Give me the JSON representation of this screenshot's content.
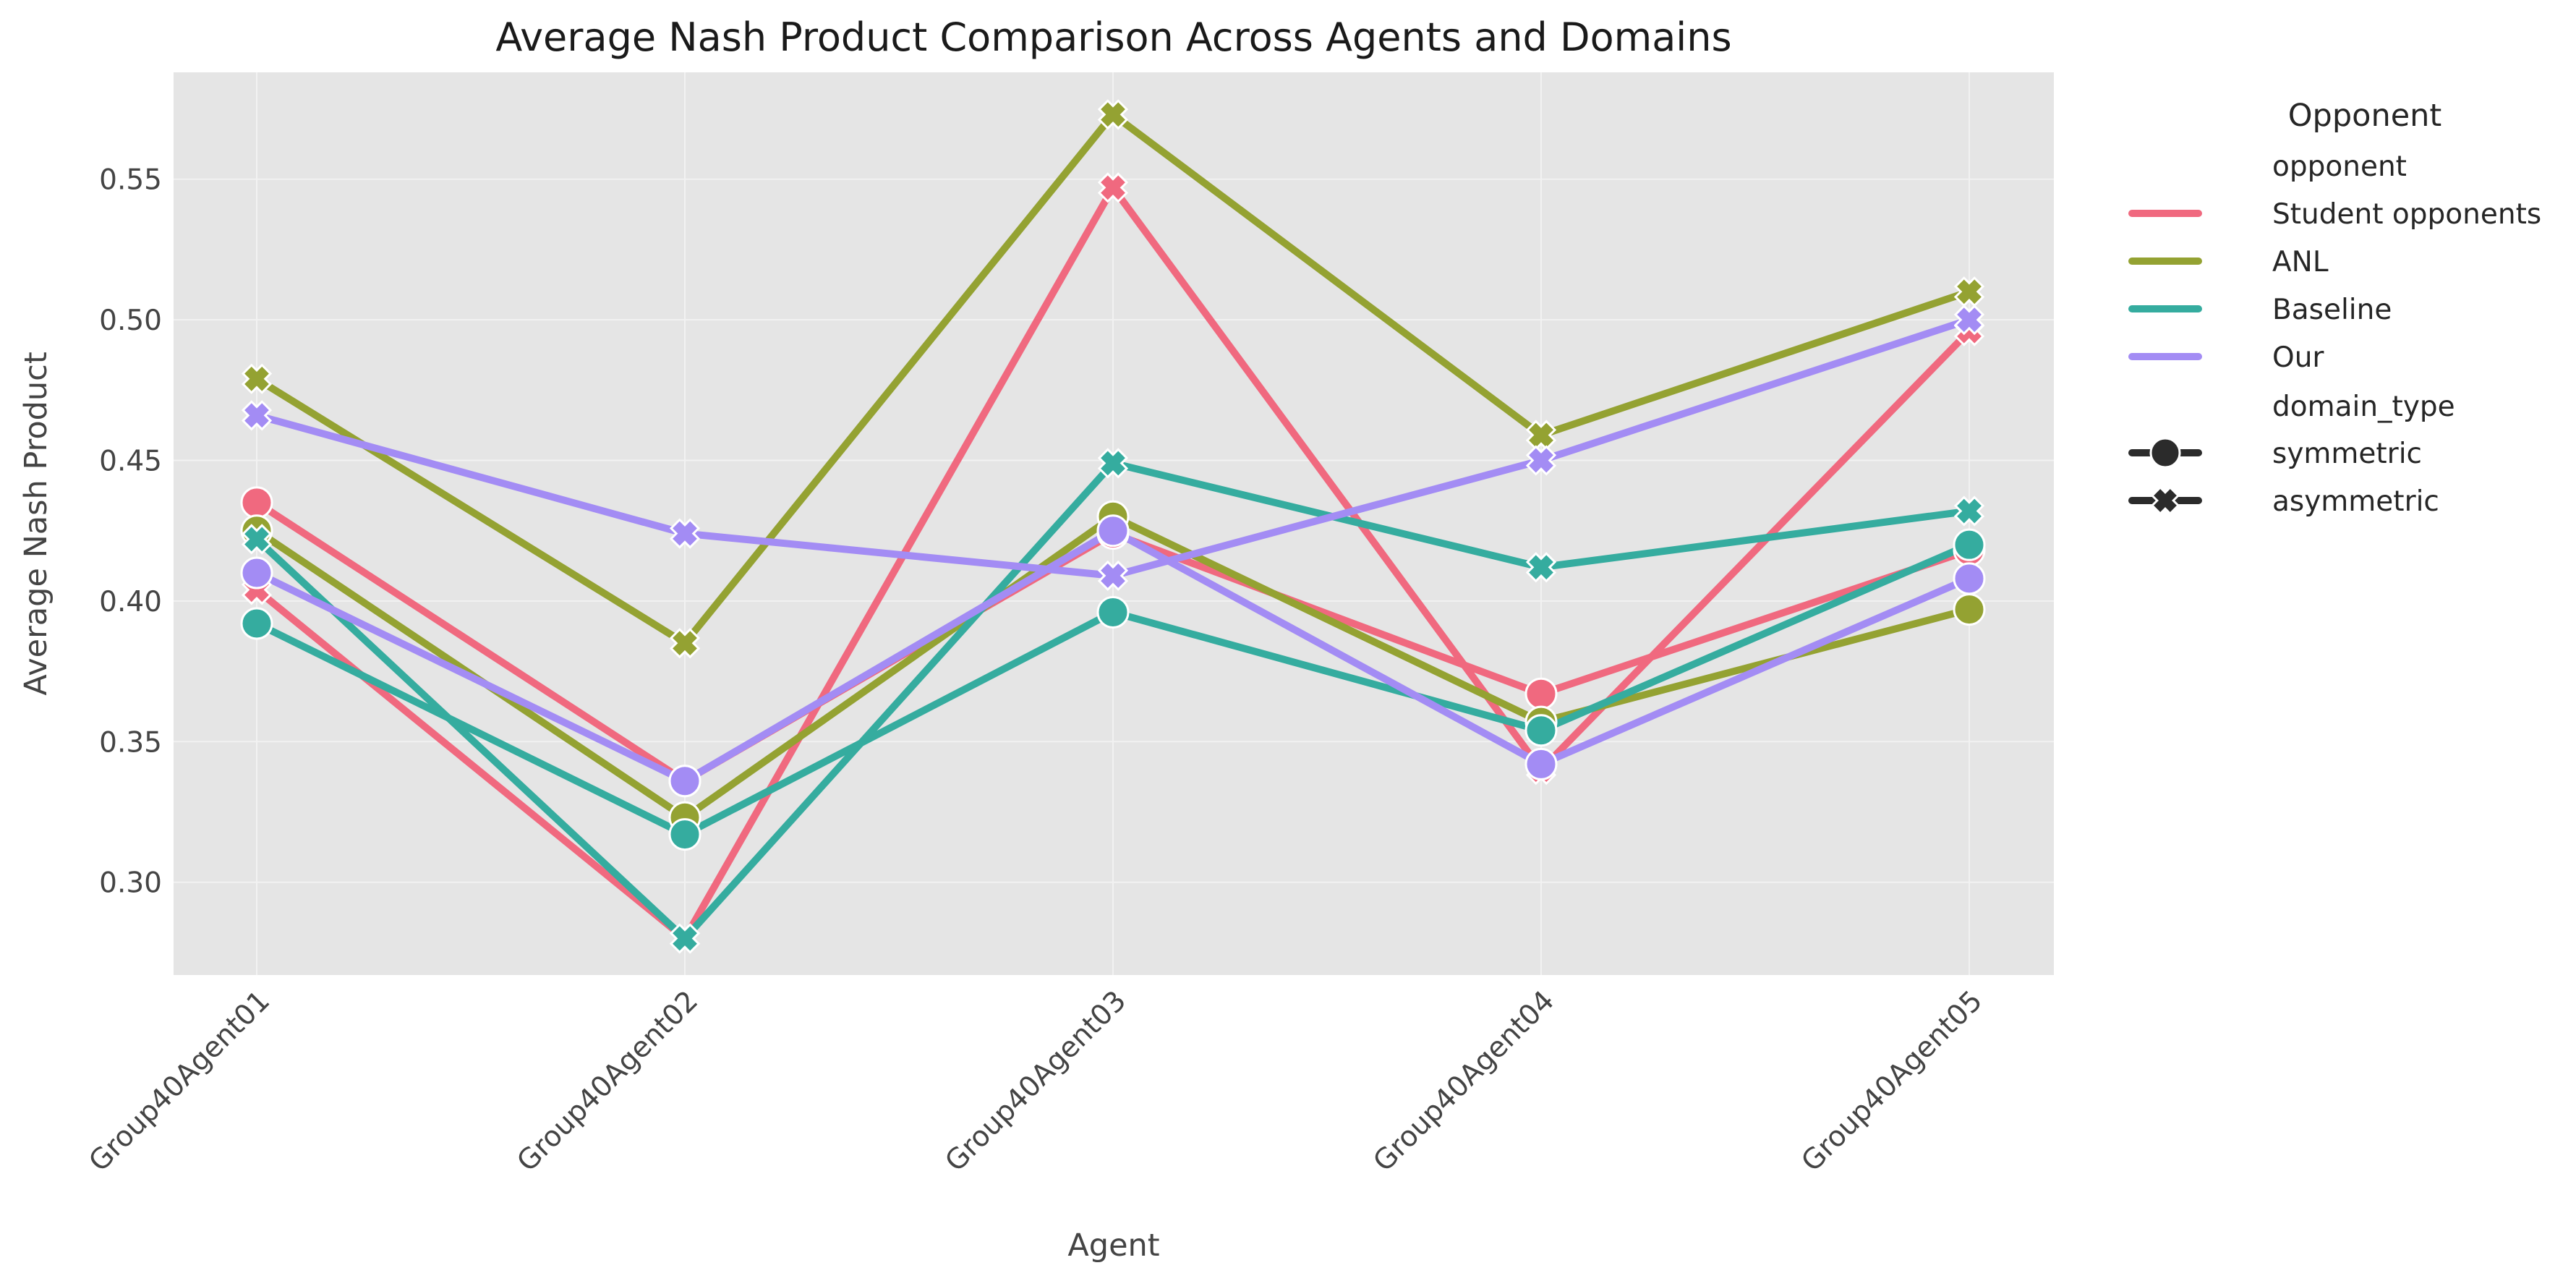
{
  "chart_data": {
    "type": "line",
    "title": "Average Nash Product Comparison Across Agents and Domains",
    "xlabel": "Agent",
    "ylabel": "Average Nash Product",
    "categories": [
      "Group40Agent01",
      "Group40Agent02",
      "Group40Agent03",
      "Group40Agent04",
      "Group40Agent05"
    ],
    "ylim": [
      0.267,
      0.588
    ],
    "yticks": [
      "0.30",
      "0.35",
      "0.40",
      "0.45",
      "0.50",
      "0.55"
    ],
    "grid": true,
    "legend": {
      "title": "Opponent",
      "placement": "outside-right",
      "hue_header": "opponent",
      "style_header": "domain_type",
      "hue_entries": [
        "Student opponents",
        "ANL",
        "Baseline",
        "Our"
      ],
      "style_entries": [
        {
          "label": "symmetric",
          "marker": "circle"
        },
        {
          "label": "asymmetric",
          "marker": "x"
        }
      ]
    },
    "series": [
      {
        "name": "Student opponents",
        "domain_type": "symmetric",
        "color": "#f0697f",
        "values": [
          0.435,
          0.336,
          0.424,
          0.367,
          0.418
        ]
      },
      {
        "name": "Student opponents",
        "domain_type": "asymmetric",
        "color": "#f0697f",
        "values": [
          0.404,
          0.28,
          0.547,
          0.34,
          0.496
        ]
      },
      {
        "name": "ANL",
        "domain_type": "symmetric",
        "color": "#94a232",
        "values": [
          0.425,
          0.323,
          0.43,
          0.357,
          0.397
        ]
      },
      {
        "name": "ANL",
        "domain_type": "asymmetric",
        "color": "#94a232",
        "values": [
          0.479,
          0.385,
          0.573,
          0.459,
          0.51
        ]
      },
      {
        "name": "Baseline",
        "domain_type": "symmetric",
        "color": "#35ac9f",
        "values": [
          0.392,
          0.317,
          0.396,
          0.354,
          0.42
        ]
      },
      {
        "name": "Baseline",
        "domain_type": "asymmetric",
        "color": "#35ac9f",
        "values": [
          0.422,
          0.28,
          0.449,
          0.412,
          0.432
        ]
      },
      {
        "name": "Our",
        "domain_type": "symmetric",
        "color": "#a38cf4",
        "values": [
          0.41,
          0.336,
          0.425,
          0.342,
          0.408
        ]
      },
      {
        "name": "Our",
        "domain_type": "asymmetric",
        "color": "#a38cf4",
        "values": [
          0.466,
          0.424,
          0.409,
          0.45,
          0.5
        ]
      }
    ]
  }
}
